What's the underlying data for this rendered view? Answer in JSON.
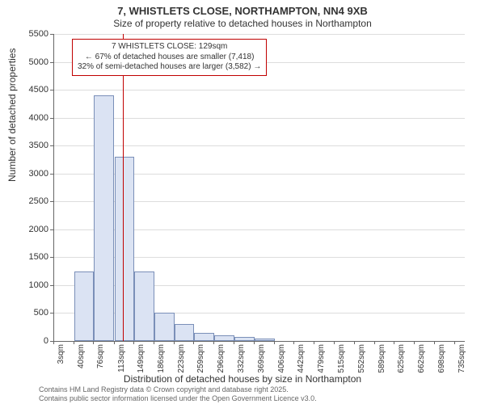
{
  "chart": {
    "type": "histogram",
    "title_line1": "7, WHISTLETS CLOSE, NORTHAMPTON, NN4 9XB",
    "title_line2": "Size of property relative to detached houses in Northampton",
    "y_axis_title": "Number of detached properties",
    "x_axis_title": "Distribution of detached houses by size in Northampton",
    "background_color": "#ffffff",
    "grid_color": "#dddddd",
    "axis_color": "#666666",
    "bar_fill": "#dbe3f3",
    "bar_border": "#7a8fb8",
    "ref_line_color": "#c00000",
    "title_fontsize": 13,
    "subtitle_fontsize": 12,
    "tick_fontsize": 11,
    "xlim": [
      3,
      753
    ],
    "ylim": [
      0,
      5500
    ],
    "y_ticks": [
      0,
      500,
      1000,
      1500,
      2000,
      2500,
      3000,
      3500,
      4000,
      4500,
      5000,
      5500
    ],
    "x_tick_values": [
      3,
      40,
      76,
      113,
      149,
      186,
      223,
      259,
      296,
      332,
      369,
      406,
      442,
      479,
      515,
      552,
      589,
      625,
      662,
      698,
      735
    ],
    "x_tick_labels": [
      "3sqm",
      "40sqm",
      "76sqm",
      "113sqm",
      "149sqm",
      "186sqm",
      "223sqm",
      "259sqm",
      "296sqm",
      "332sqm",
      "369sqm",
      "406sqm",
      "442sqm",
      "479sqm",
      "515sqm",
      "552sqm",
      "589sqm",
      "625sqm",
      "662sqm",
      "698sqm",
      "735sqm"
    ],
    "bars": [
      {
        "x0": 40,
        "x1": 76,
        "value": 1250
      },
      {
        "x0": 76,
        "x1": 113,
        "value": 4400
      },
      {
        "x0": 113,
        "x1": 149,
        "value": 3300
      },
      {
        "x0": 149,
        "x1": 186,
        "value": 1250
      },
      {
        "x0": 186,
        "x1": 223,
        "value": 500
      },
      {
        "x0": 223,
        "x1": 259,
        "value": 300
      },
      {
        "x0": 259,
        "x1": 296,
        "value": 150
      },
      {
        "x0": 296,
        "x1": 332,
        "value": 100
      },
      {
        "x0": 332,
        "x1": 369,
        "value": 70
      },
      {
        "x0": 369,
        "x1": 406,
        "value": 50
      }
    ],
    "ref_line_x": 129,
    "annotation": {
      "line1": "7 WHISTLETS CLOSE: 129sqm",
      "line2": "← 67% of detached houses are smaller (7,418)",
      "line3": "32% of semi-detached houses are larger (3,582) →"
    }
  },
  "footer": {
    "line1": "Contains HM Land Registry data © Crown copyright and database right 2025.",
    "line2": "Contains public sector information licensed under the Open Government Licence v3.0."
  }
}
